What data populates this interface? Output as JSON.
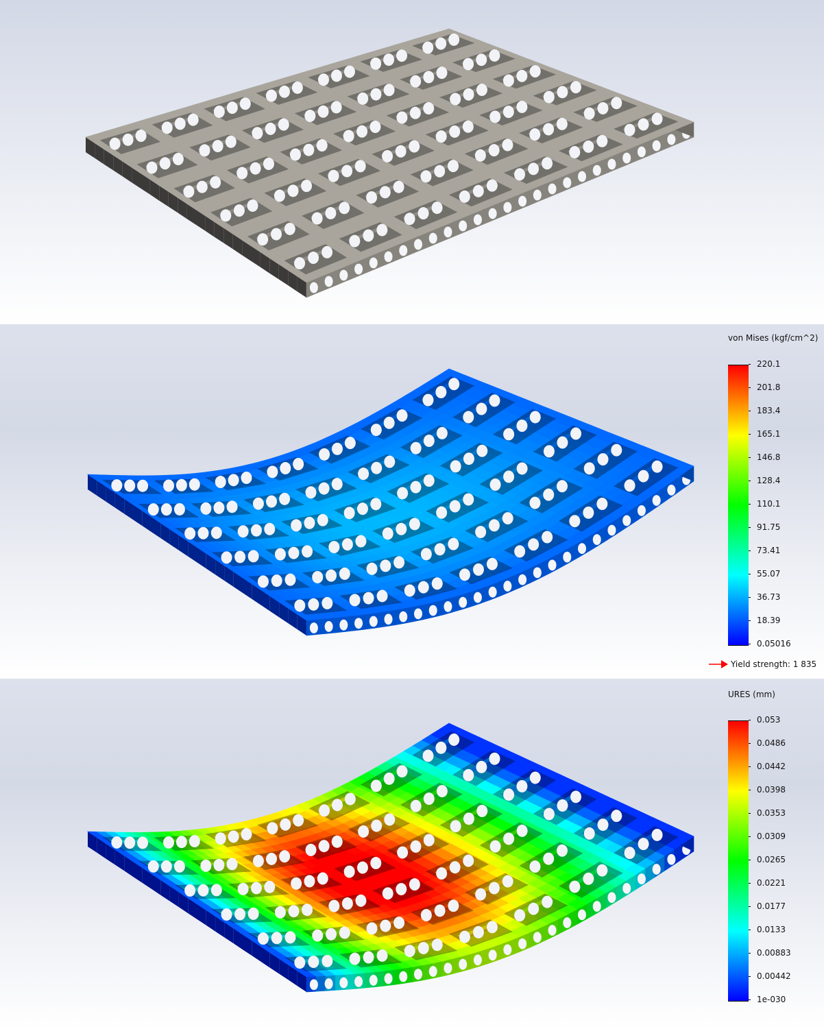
{
  "views": [
    {
      "name": "model-view",
      "colormap": false,
      "base_color": "#a9a59c"
    },
    {
      "name": "stress-view",
      "colormap": true,
      "legend": {
        "title": "von Mises (kgf/cm^2)",
        "labels": [
          "220.1",
          "201.8",
          "183.4",
          "165.1",
          "146.8",
          "128.4",
          "110.1",
          "91.75",
          "73.41",
          "55.07",
          "36.73",
          "18.39",
          "0.05016"
        ],
        "yield_strength": "Yield strength: 1 835",
        "yield_arrow_color": "#ff0000"
      }
    },
    {
      "name": "displacement-view",
      "colormap": true,
      "legend": {
        "title": "URES (mm)",
        "labels": [
          "0.053",
          "0.0486",
          "0.0442",
          "0.0398",
          "0.0353",
          "0.0309",
          "0.0265",
          "0.0221",
          "0.0177",
          "0.0133",
          "0.00883",
          "0.00442",
          "1e-030"
        ]
      }
    }
  ],
  "colormap_stops": [
    "#0000ff",
    "#0080ff",
    "#00ffff",
    "#00ff80",
    "#00ff00",
    "#80ff00",
    "#ffff00",
    "#ff8000",
    "#ff0000"
  ]
}
